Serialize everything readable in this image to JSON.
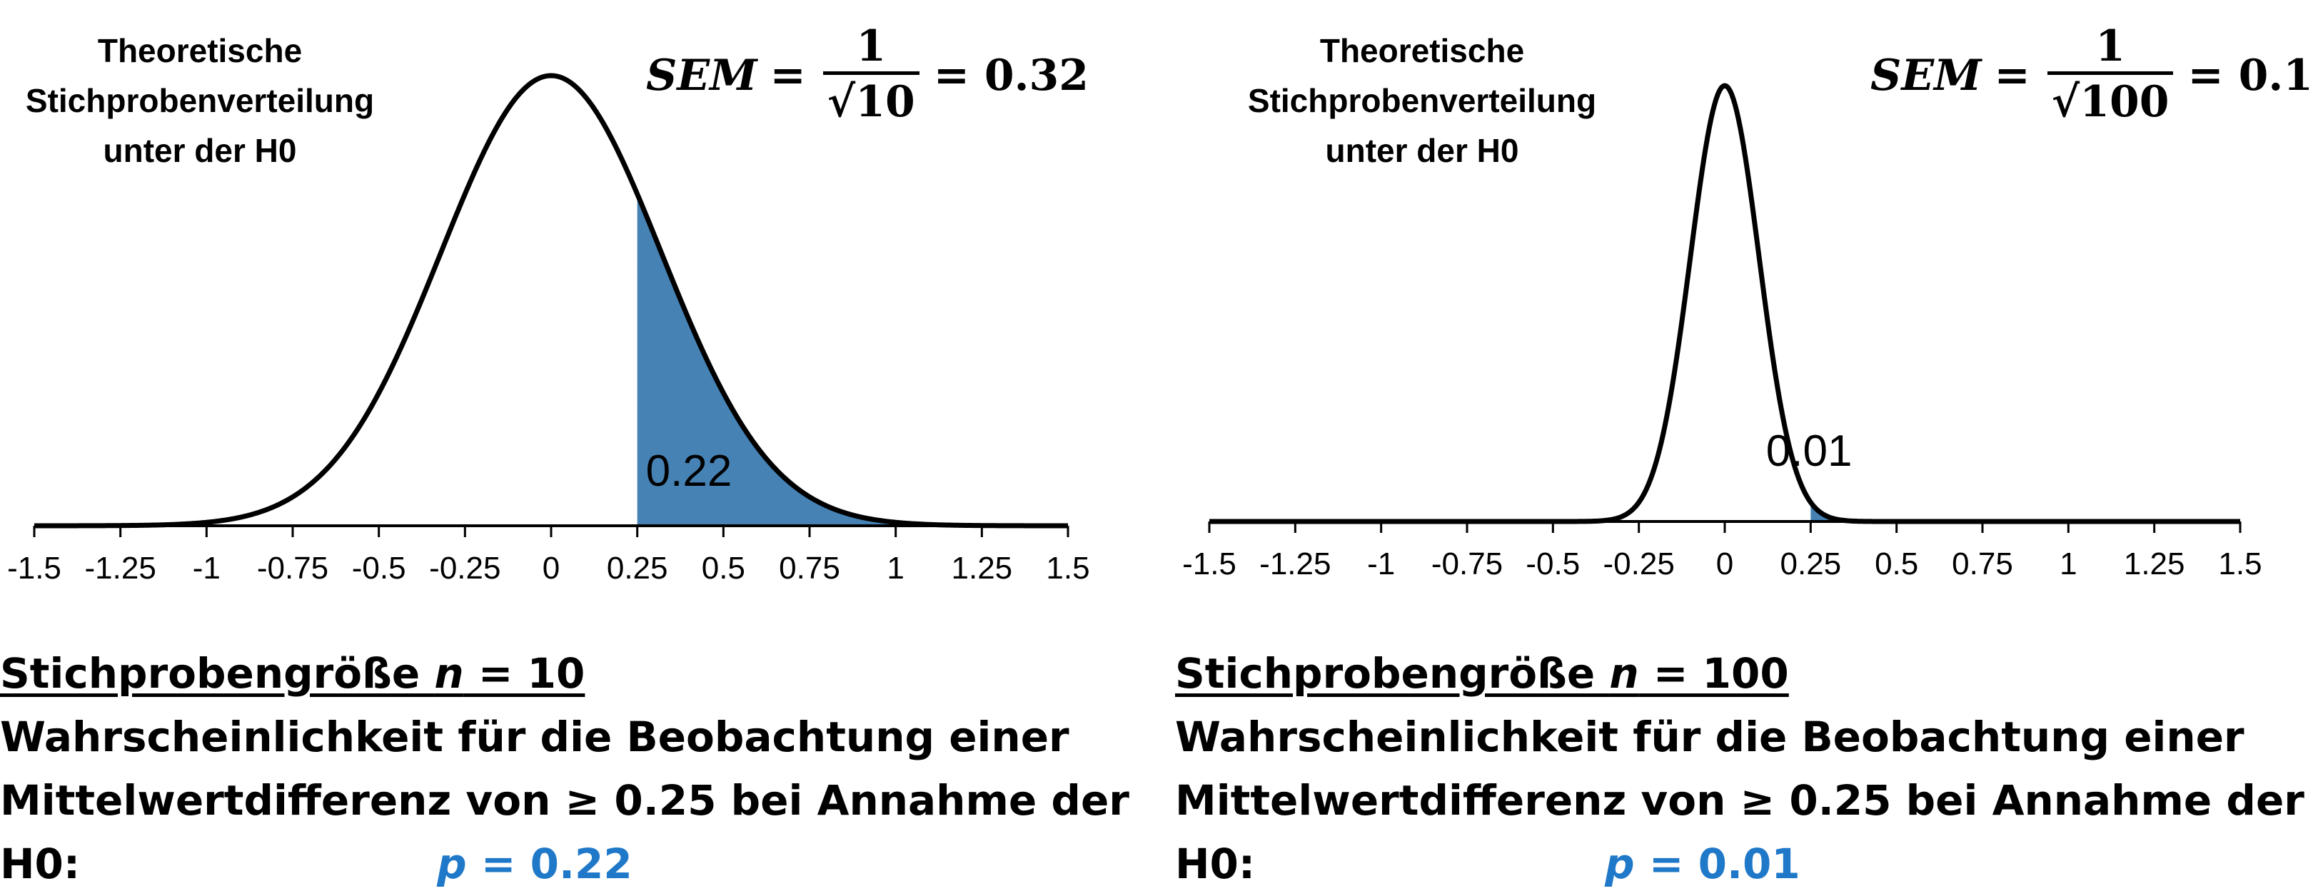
{
  "colors": {
    "curve": "#000000",
    "fill": "#4682b4",
    "axis": "#000000",
    "p_value": "#1f78c8"
  },
  "chart_data": [
    {
      "type": "area",
      "title": "Theoretische Stichprobenverteilung unter der H0",
      "title_lines": [
        "Theoretische",
        "Stichprobenverteilung",
        "unter der H0"
      ],
      "distribution": "normal",
      "mean": 0,
      "sd": 0.32,
      "shaded_from": 0.25,
      "area_label": "0.22",
      "xlim": [
        -1.5,
        1.5
      ],
      "xticks": [
        -1.5,
        -1.25,
        -1,
        -0.75,
        -0.5,
        -0.25,
        0,
        0.25,
        0.5,
        0.75,
        1,
        1.25,
        1.5
      ],
      "xtick_labels": [
        "-1.5",
        "-1.25",
        "-1",
        "-0.75",
        "-0.5",
        "-0.25",
        "0",
        "0.25",
        "0.5",
        "0.75",
        "1",
        "1.25",
        "1.5"
      ],
      "formula": {
        "lhs": "SEM",
        "eq": "=",
        "numerator": "1",
        "denominator": "√10",
        "result": "= 0.32"
      },
      "caption": {
        "n_prefix": "Stichprobengröße ",
        "n_var": "n",
        "n_value": " = 10",
        "line2": "Wahrscheinlichkeit für die Beobachtung einer",
        "line3": "Mittelwertdifferenz von ≥ 0.25 bei Annahme der",
        "h0": "H0:",
        "p_var": "p",
        "p_value": " = 0.22"
      }
    },
    {
      "type": "area",
      "title": "Theoretische Stichprobenverteilung unter der H0",
      "title_lines": [
        "Theoretische",
        "Stichprobenverteilung",
        "unter der H0"
      ],
      "distribution": "normal",
      "mean": 0,
      "sd": 0.1,
      "shaded_from": 0.25,
      "area_label": "0.01",
      "xlim": [
        -1.5,
        1.5
      ],
      "xticks": [
        -1.5,
        -1.25,
        -1,
        -0.75,
        -0.5,
        -0.25,
        0,
        0.25,
        0.5,
        0.75,
        1,
        1.25,
        1.5
      ],
      "xtick_labels": [
        "-1.5",
        "-1.25",
        "-1",
        "-0.75",
        "-0.5",
        "-0.25",
        "0",
        "0.25",
        "0.5",
        "0.75",
        "1",
        "1.25",
        "1.5"
      ],
      "formula": {
        "lhs": "SEM",
        "eq": "=",
        "numerator": "1",
        "denominator": "√100",
        "result": "= 0.1"
      },
      "caption": {
        "n_prefix": "Stichprobengröße ",
        "n_var": "n",
        "n_value": " = 100",
        "line2": "Wahrscheinlichkeit für die Beobachtung einer",
        "line3": "Mittelwertdifferenz von ≥ 0.25 bei Annahme der",
        "h0": "H0:",
        "p_var": "p",
        "p_value": " = 0.01"
      }
    }
  ]
}
